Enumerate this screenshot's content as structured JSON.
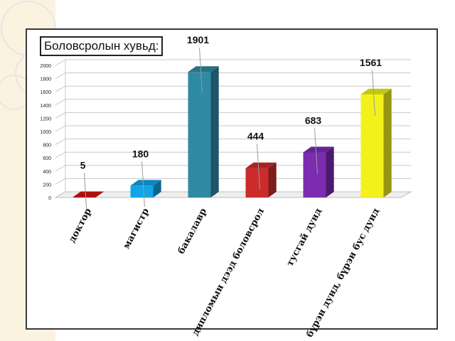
{
  "slide": {
    "background": "#ffffff",
    "decor_color": "#f5deb0",
    "frame_color": "#3a3a3a"
  },
  "chart_data": {
    "type": "bar",
    "title": "Боловсролын хувьд:",
    "categories": [
      "доктор",
      "магистр",
      "бакалавр",
      "дипломын дээд боловсрол",
      "тусгай дунд",
      "бүрэн дунд, бүрэн бус дунд"
    ],
    "values": [
      5,
      180,
      1901,
      444,
      683,
      1561
    ],
    "data_labels": [
      "5",
      "180",
      "1901",
      "444",
      "683",
      "1561"
    ],
    "colors": [
      "#d21313",
      "#12a5e6",
      "#2f8aa4",
      "#cc2b2b",
      "#7b2cb0",
      "#f2f21a"
    ],
    "ylim": [
      0,
      2000
    ],
    "yticks": [
      "0",
      "200",
      "400",
      "600",
      "800",
      "1000",
      "1200",
      "1400",
      "1600",
      "1800",
      "2000"
    ],
    "grid": true,
    "legend": "none"
  }
}
